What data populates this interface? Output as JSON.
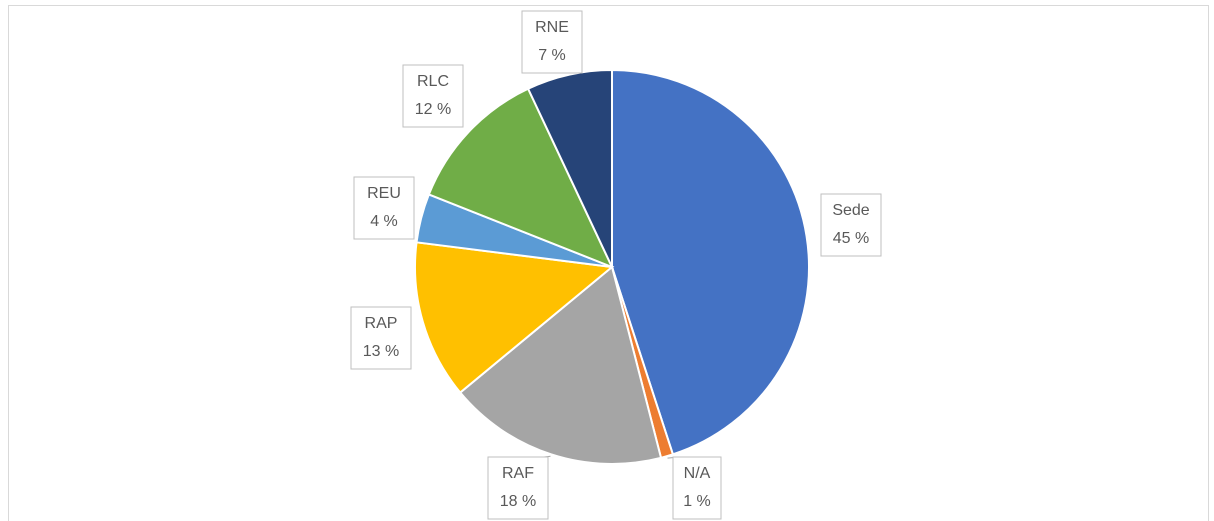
{
  "chart_data": {
    "type": "pie",
    "categories": [
      "Sede",
      "N/A",
      "RAF",
      "RAP",
      "REU",
      "RLC",
      "RNE"
    ],
    "values": [
      45,
      1,
      18,
      13,
      4,
      12,
      7
    ],
    "value_labels": [
      "45 %",
      "1 %",
      "18 %",
      "13 %",
      "4 %",
      "12 %",
      "7 %"
    ],
    "colors": [
      "#4472c4",
      "#ed7d31",
      "#a5a5a5",
      "#ffc000",
      "#5b9bd5",
      "#70ad47",
      "#264478"
    ]
  }
}
